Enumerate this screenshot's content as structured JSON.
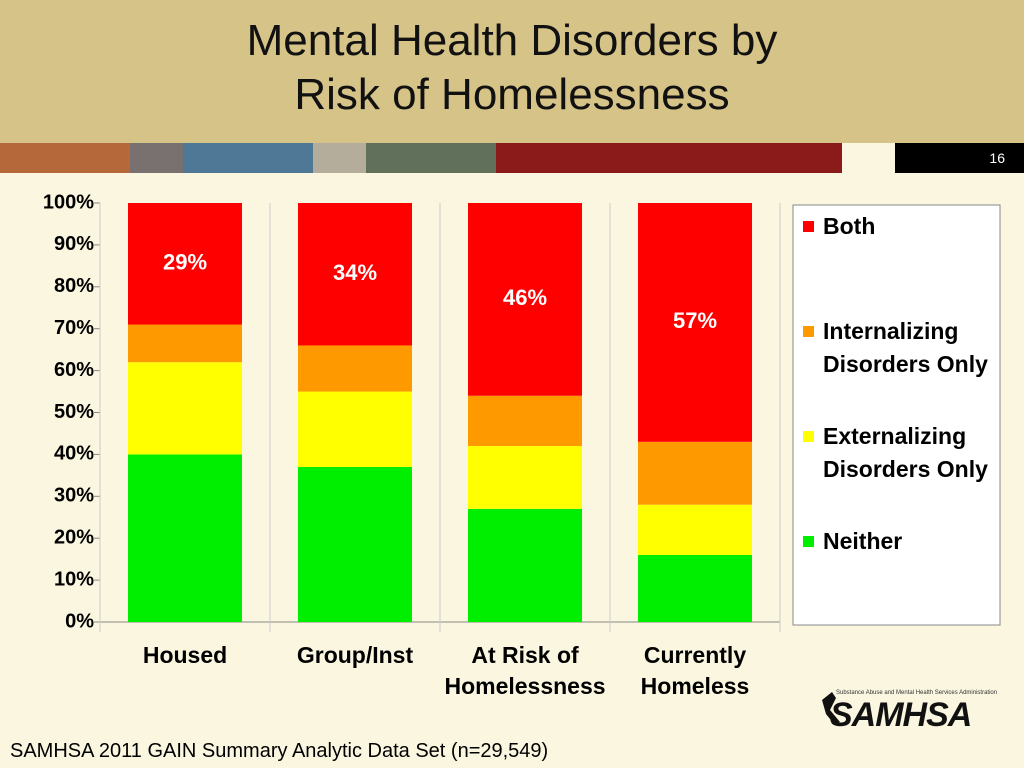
{
  "header": {
    "title": "Mental Health Disorders by Risk of Homelessness",
    "page_number": "16"
  },
  "chart_data": {
    "type": "stacked_bar",
    "categories": [
      "Housed",
      "Group/Inst",
      "At Risk of Homelessness",
      "Currently Homeless"
    ],
    "series": [
      {
        "name": "Neither",
        "color": "#00ee00",
        "values": [
          40,
          37,
          27,
          16
        ]
      },
      {
        "name": "Externalizing Disorders Only",
        "color": "#ffff00",
        "values": [
          22,
          18,
          15,
          12
        ]
      },
      {
        "name": "Internalizing Disorders Only",
        "color": "#ff9900",
        "values": [
          9,
          11,
          12,
          15
        ]
      },
      {
        "name": "Both",
        "color": "#ff0000",
        "values": [
          29,
          34,
          46,
          57
        ],
        "value_labels": [
          "29%",
          "34%",
          "46%",
          "57%"
        ]
      }
    ],
    "ylim": [
      0,
      100
    ],
    "yticks": [
      {
        "value": 0,
        "label": "0%"
      },
      {
        "value": 10,
        "label": "10%"
      },
      {
        "value": 20,
        "label": "20%"
      },
      {
        "value": 30,
        "label": "30%"
      },
      {
        "value": 40,
        "label": "40%"
      },
      {
        "value": 50,
        "label": "50%"
      },
      {
        "value": 60,
        "label": "60%"
      },
      {
        "value": 70,
        "label": "70%"
      },
      {
        "value": 80,
        "label": "80%"
      },
      {
        "value": 90,
        "label": "90%"
      },
      {
        "value": 100,
        "label": "100%"
      }
    ],
    "grid": false,
    "legend": "right"
  },
  "footer": {
    "source": "SAMHSA 2011 GAIN Summary Analytic Data Set (n=29,549)",
    "logo": "SAMHSA",
    "logo_tagline": "Substance Abuse and Mental Health Services Administration"
  }
}
